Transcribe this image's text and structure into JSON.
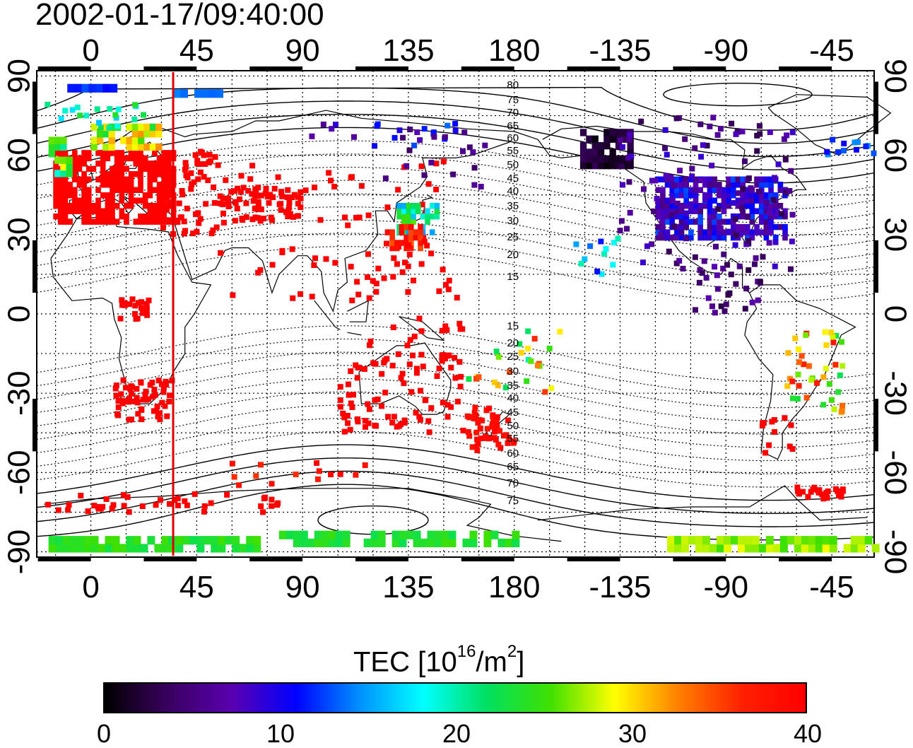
{
  "timestamp": "2002-01-17/09:40:00",
  "map": {
    "lon_ticks": [
      "0",
      "45",
      "90",
      "135",
      "180",
      "-135",
      "-90",
      "-45"
    ],
    "lat_ticks_left": [
      "90",
      "60",
      "30",
      "0",
      "-30",
      "-60",
      "-90"
    ],
    "lat_ticks_right": [
      "90",
      "60",
      "30",
      "0",
      "-30",
      "-60",
      "-90"
    ],
    "lat_ticks_values": [
      90,
      60,
      30,
      0,
      -30,
      -60,
      -90
    ],
    "lon_ticks_values": [
      0,
      45,
      90,
      135,
      180,
      225,
      270,
      315
    ],
    "lon_range": [
      -23,
      333
    ],
    "lat_range": [
      -92,
      92
    ],
    "terminator_longitude": 35,
    "terminator_color": "#e00000",
    "contour_labels_north": [
      "80",
      "75",
      "70",
      "65",
      "60",
      "55",
      "50",
      "45",
      "40",
      "35",
      "30",
      "25",
      "20",
      "15"
    ],
    "contour_labels_south": [
      "15",
      "20",
      "25",
      "30",
      "35",
      "40",
      "45",
      "50",
      "55",
      "60",
      "65",
      "70",
      "75"
    ]
  },
  "colorbar": {
    "title_main": "TEC  [10",
    "title_sup1": "16",
    "title_mid": "/m",
    "title_sup2": "2",
    "title_end": "]",
    "labels": [
      "0",
      "10",
      "20",
      "30",
      "40"
    ],
    "min": 0,
    "max": 40,
    "stops": [
      "#000000",
      "#3a0060",
      "#5a00b0",
      "#0000ff",
      "#0090ff",
      "#00ffff",
      "#00e060",
      "#40e000",
      "#ffff00",
      "#ff8000",
      "#ff2000",
      "#ff0000"
    ]
  }
}
